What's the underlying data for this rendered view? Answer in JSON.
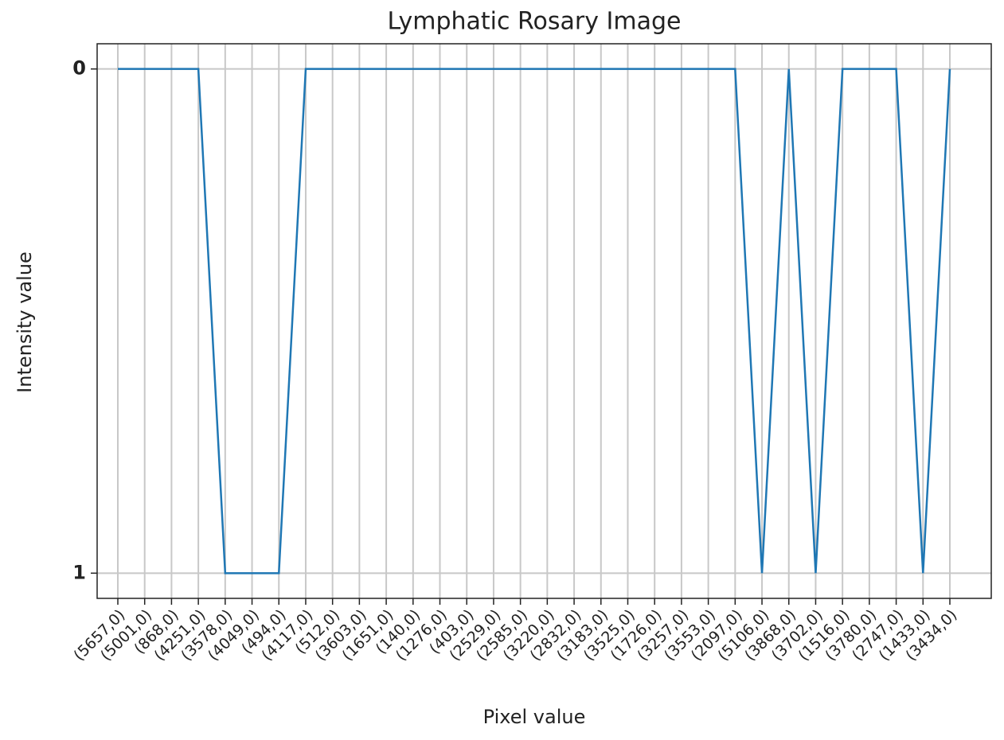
{
  "chart_data": {
    "type": "line",
    "title": "Lymphatic Rosary Image",
    "x_label": "Pixel value",
    "y_label": "Intensity value",
    "categories": [
      "(5657,0)",
      "(5001,0)",
      "(868,0)",
      "(4251,0)",
      "(3578,0)",
      "(4049,0)",
      "(494,0)",
      "(4117,0)",
      "(512,0)",
      "(3603,0)",
      "(1651,0)",
      "(140,0)",
      "(1276,0)",
      "(403,0)",
      "(2529,0)",
      "(2585,0)",
      "(3220,0)",
      "(2832,0)",
      "(3183,0)",
      "(3525,0)",
      "(1726,0)",
      "(3257,0)",
      "(3553,0)",
      "(2097,0)",
      "(5106,0)",
      "(3868,0)",
      "(3702,0)",
      "(1516,0)",
      "(3780,0)",
      "(2747,0)",
      "(1433,0)",
      "(3434,0)"
    ],
    "values": [
      0,
      0,
      0,
      0,
      1,
      1,
      1,
      0,
      0,
      0,
      0,
      0,
      0,
      0,
      0,
      0,
      0,
      0,
      0,
      0,
      0,
      0,
      0,
      0,
      1,
      0,
      1,
      0,
      0,
      0,
      1,
      0
    ],
    "color": "#1f77b4",
    "ylim": [
      1.05,
      -0.05
    ],
    "yticks": [
      0,
      1
    ],
    "grid": true
  }
}
